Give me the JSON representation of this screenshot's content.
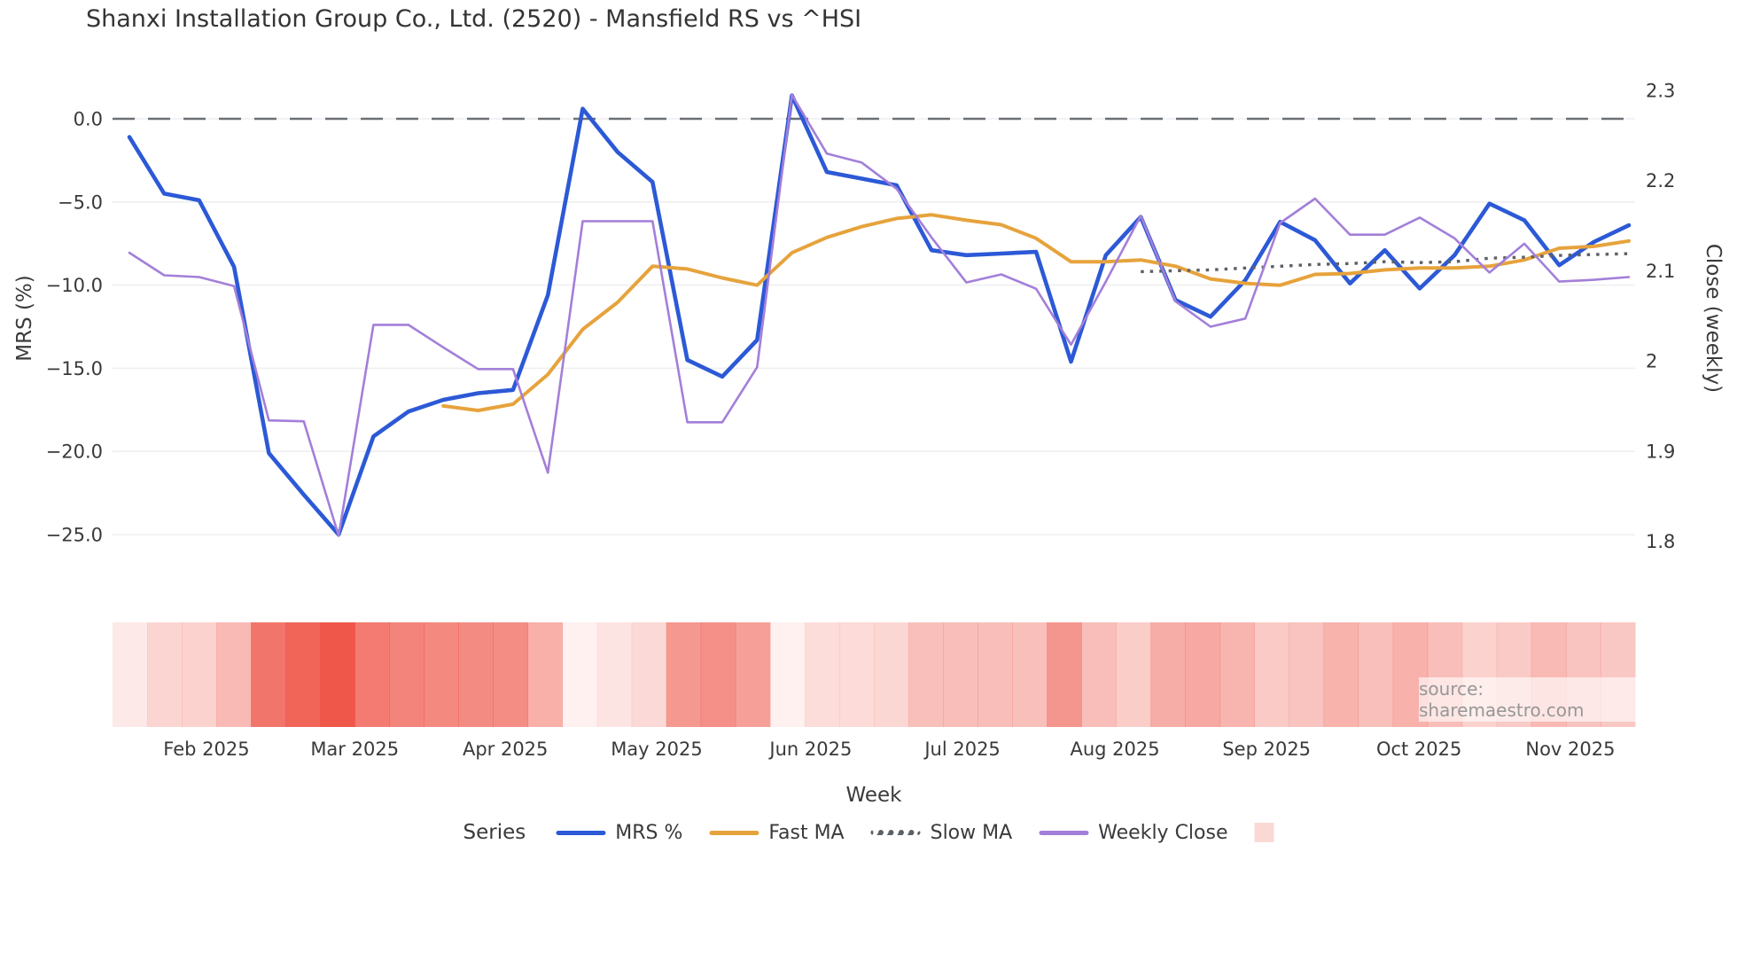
{
  "title": "Shanxi Installation Group Co., Ltd. (2520) - Mansfield RS vs ^HSI",
  "source_note": "source: sharemaestro.com",
  "axes": {
    "left": {
      "label": "MRS (%)",
      "tick_values": [
        0,
        -5,
        -10,
        -15,
        -20,
        -25
      ],
      "tick_labels": [
        "0.0",
        "−5.0",
        "−10.0",
        "−15.0",
        "−20.0",
        "−25.0"
      ]
    },
    "right": {
      "label": "Close (weekly)",
      "tick_values": [
        2.3,
        2.2,
        2.1,
        2.0,
        1.9,
        1.8
      ],
      "tick_labels": [
        "2.3",
        "2.2",
        "2.1",
        "2",
        "1.9",
        "1.8"
      ]
    },
    "x": {
      "label": "Week",
      "month_labels": [
        "Feb 2025",
        "Mar 2025",
        "Apr 2025",
        "May 2025",
        "Jun 2025",
        "Jul 2025",
        "Aug 2025",
        "Sep 2025",
        "Oct 2025",
        "Nov 2025"
      ],
      "month_week_positions": [
        3.21,
        7.46,
        11.78,
        16.12,
        20.54,
        24.89,
        29.26,
        33.61,
        37.98,
        42.32
      ]
    }
  },
  "legend": {
    "title": "Series",
    "items": [
      {
        "label": "MRS %",
        "color": "#2c59d6",
        "style": "solid"
      },
      {
        "label": "Fast MA",
        "color": "#e6a33c",
        "style": "solid"
      },
      {
        "label": "Slow MA",
        "color": "#5c6166",
        "style": "dotted"
      },
      {
        "label": "Weekly Close",
        "color": "#a37fd9",
        "style": "solid"
      },
      {
        "label": "",
        "color": "#fad9d4",
        "style": "patch"
      }
    ]
  },
  "chart_data": {
    "type": "line+heatmap",
    "weeks": 44,
    "zero_line_value": 0,
    "left_axis_range": [
      -25,
      0
    ],
    "right_axis_range": [
      1.8,
      2.3
    ],
    "grid": "horizontal-only",
    "series": [
      {
        "name": "MRS %",
        "axis": "left",
        "color": "#2c59d6",
        "width": 4.6,
        "style": "solid",
        "start_week": 1,
        "values": [
          -1.1,
          -4.5,
          -4.9,
          -8.9,
          -20.1,
          -22.6,
          -25.0,
          -19.1,
          -17.6,
          -16.9,
          -16.5,
          -16.3,
          -10.6,
          0.6,
          -2.0,
          -3.8,
          -14.5,
          -15.5,
          -13.3,
          1.4,
          -3.2,
          -3.6,
          -4.0,
          -7.9,
          -8.2,
          -8.1,
          -8.0,
          -14.6,
          -8.2,
          -5.9,
          -10.9,
          -11.9,
          -9.7,
          -6.2,
          -7.3,
          -9.9,
          -7.9,
          -10.2,
          -8.2,
          -5.1,
          -6.1,
          -8.8,
          -7.4,
          -6.4
        ]
      },
      {
        "name": "Fast MA",
        "axis": "right",
        "color": "#e6a33c",
        "width": 4.0,
        "style": "solid",
        "start_week": 10,
        "values": [
          1.95,
          1.945,
          1.952,
          1.985,
          2.035,
          2.065,
          2.105,
          2.102,
          2.092,
          2.084,
          2.12,
          2.137,
          2.149,
          2.158,
          2.162,
          2.156,
          2.151,
          2.136,
          2.11,
          2.11,
          2.112,
          2.105,
          2.091,
          2.086,
          2.084,
          2.096,
          2.097,
          2.101,
          2.103,
          2.103,
          2.105,
          2.112,
          2.125,
          2.127,
          2.133
        ]
      },
      {
        "name": "Slow MA",
        "axis": "right",
        "color": "#5c6166",
        "width": 3.4,
        "style": "dotted",
        "start_week": 30,
        "values": [
          2.099,
          2.1,
          2.101,
          2.103,
          2.105,
          2.107,
          2.108,
          2.11,
          2.109,
          2.11,
          2.114,
          2.115,
          2.117,
          2.118,
          2.119
        ]
      },
      {
        "name": "Weekly Close",
        "axis": "right",
        "color": "#a37fd9",
        "width": 2.6,
        "style": "solid",
        "start_week": 1,
        "values": [
          2.12,
          2.095,
          2.093,
          2.083,
          1.934,
          1.933,
          1.806,
          2.04,
          2.04,
          2.015,
          1.991,
          1.991,
          1.876,
          2.155,
          2.155,
          2.155,
          1.932,
          1.932,
          1.993,
          2.295,
          2.23,
          2.22,
          2.191,
          2.137,
          2.087,
          2.096,
          2.08,
          2.018,
          2.088,
          2.161,
          2.066,
          2.038,
          2.047,
          2.153,
          2.18,
          2.14,
          2.14,
          2.159,
          2.136,
          2.098,
          2.13,
          2.088,
          2.09,
          2.093
        ]
      }
    ],
    "heatmap": {
      "base_color_rgb": [
        238,
        74,
        60
      ],
      "intensities": [
        0.12,
        0.23,
        0.25,
        0.38,
        0.76,
        0.85,
        0.93,
        0.73,
        0.68,
        0.65,
        0.64,
        0.63,
        0.44,
        0.08,
        0.15,
        0.21,
        0.57,
        0.61,
        0.53,
        0.08,
        0.19,
        0.2,
        0.22,
        0.35,
        0.36,
        0.36,
        0.35,
        0.58,
        0.36,
        0.28,
        0.45,
        0.48,
        0.41,
        0.29,
        0.33,
        0.42,
        0.35,
        0.43,
        0.36,
        0.25,
        0.29,
        0.38,
        0.33,
        0.3
      ]
    },
    "colors": {
      "grid": "#efefef",
      "zero_dash": "#6b7076",
      "tick_text": "#3a3a3a"
    }
  }
}
